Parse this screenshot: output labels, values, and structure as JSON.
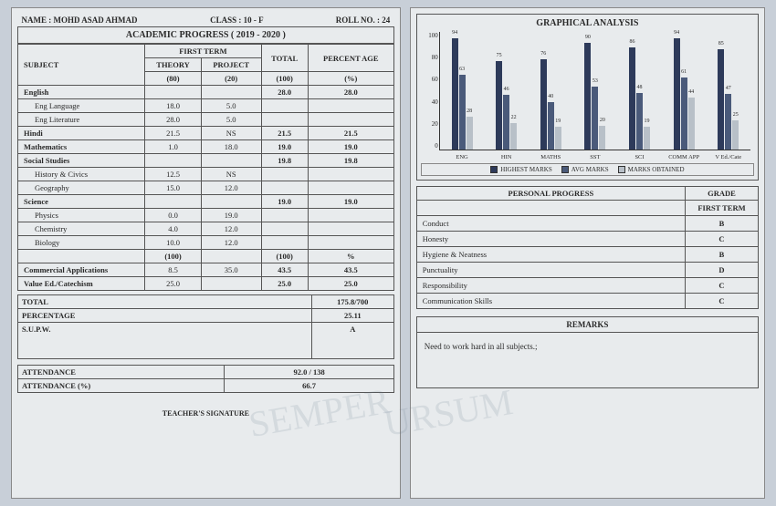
{
  "header": {
    "name_label": "NAME :",
    "name": "MOHD ASAD AHMAD",
    "class_label": "CLASS :",
    "class": "10 - F",
    "roll_label": "ROLL NO. :",
    "roll": "24",
    "progress_title": "ACADEMIC PROGRESS ( 2019 - 2020 )"
  },
  "cols": {
    "subject": "SUBJECT",
    "first_term": "FIRST TERM",
    "total": "TOTAL",
    "percent": "PERCENT\nAGE",
    "theory": "THEORY",
    "project": "PROJECT",
    "theory_max": "(80)",
    "project_max": "(20)",
    "total_max": "(100)",
    "percent_unit": "(%)"
  },
  "subjects": [
    {
      "name": "English",
      "theory": "",
      "project": "",
      "total": "28.0",
      "pct": "28.0",
      "bold": true
    },
    {
      "name": "Eng Language",
      "theory": "18.0",
      "project": "5.0",
      "total": "",
      "pct": "",
      "sub": true
    },
    {
      "name": "Eng Literature",
      "theory": "28.0",
      "project": "5.0",
      "total": "",
      "pct": "",
      "sub": true
    },
    {
      "name": "Hindi",
      "theory": "21.5",
      "project": "NS",
      "total": "21.5",
      "pct": "21.5",
      "bold": true
    },
    {
      "name": "Mathematics",
      "theory": "1.0",
      "project": "18.0",
      "total": "19.0",
      "pct": "19.0",
      "bold": true
    },
    {
      "name": "Social Studies",
      "theory": "",
      "project": "",
      "total": "19.8",
      "pct": "19.8",
      "bold": true
    },
    {
      "name": "History & Civics",
      "theory": "12.5",
      "project": "NS",
      "total": "",
      "pct": "",
      "sub": true
    },
    {
      "name": "Geography",
      "theory": "15.0",
      "project": "12.0",
      "total": "",
      "pct": "",
      "sub": true
    },
    {
      "name": "Science",
      "theory": "",
      "project": "",
      "total": "19.0",
      "pct": "19.0",
      "bold": true
    },
    {
      "name": "Physics",
      "theory": "0.0",
      "project": "19.0",
      "total": "",
      "pct": "",
      "sub": true
    },
    {
      "name": "Chemistry",
      "theory": "4.0",
      "project": "12.0",
      "total": "",
      "pct": "",
      "sub": true
    },
    {
      "name": "Biology",
      "theory": "10.0",
      "project": "12.0",
      "total": "",
      "pct": "",
      "sub": true
    }
  ],
  "midrow": {
    "theory": "(100)",
    "total": "(100)",
    "pct": "%"
  },
  "extra": [
    {
      "name": "Commercial Applications",
      "theory": "8.5",
      "project": "35.0",
      "total": "43.5",
      "pct": "43.5"
    },
    {
      "name": "Value Ed./Catechism",
      "theory": "25.0",
      "project": "",
      "total": "25.0",
      "pct": "25.0"
    }
  ],
  "totals": {
    "total_label": "TOTAL",
    "total_val": "175.8/700",
    "pct_label": "PERCENTAGE",
    "pct_val": "25.11",
    "supw_label": "S.U.P.W.",
    "supw_val": "A",
    "att_label": "ATTENDANCE",
    "att_val": "92.0 / 138",
    "attpct_label": "ATTENDANCE (%)",
    "attpct_val": "66.7",
    "sig_label": "TEACHER'S SIGNATURE"
  },
  "chart": {
    "title": "GRAPHICAL ANALYSIS",
    "ylim": 100,
    "yticks": [
      "100",
      "80",
      "60",
      "40",
      "20",
      "0"
    ],
    "colors": {
      "highest": "#2d3a5a",
      "avg": "#4a5a7a",
      "obtained": "#b8c0c8"
    },
    "legend": {
      "highest": "HIGHEST MARKS",
      "avg": "AVG MARKS",
      "obtained": "MARKS OBTAINED"
    },
    "groups": [
      {
        "label": "ENG",
        "highest": 94,
        "avg": 63,
        "obtained": 28
      },
      {
        "label": "HIN",
        "highest": 75,
        "avg": 46,
        "obtained": 22
      },
      {
        "label": "MATHS",
        "highest": 76,
        "avg": 40,
        "obtained": 19
      },
      {
        "label": "SST",
        "highest": 90,
        "avg": 53,
        "obtained": 20
      },
      {
        "label": "SCI",
        "highest": 86,
        "avg": 48,
        "obtained": 19
      },
      {
        "label": "COMM APP",
        "highest": 94,
        "avg": 61,
        "obtained": 44
      },
      {
        "label": "V Ed./Cate",
        "highest": 85,
        "avg": 47,
        "obtained": 25
      }
    ]
  },
  "personal": {
    "title": "PERSONAL PROGRESS",
    "grade_hdr": "GRADE",
    "term_hdr": "FIRST TERM",
    "rows": [
      {
        "label": "Conduct",
        "grade": "B"
      },
      {
        "label": "Honesty",
        "grade": "C"
      },
      {
        "label": "Hygiene & Neatness",
        "grade": "B"
      },
      {
        "label": "Punctuality",
        "grade": "D"
      },
      {
        "label": "Responsibility",
        "grade": "C"
      },
      {
        "label": "Communication Skills",
        "grade": "C"
      }
    ]
  },
  "remarks": {
    "title": "REMARKS",
    "text": "Need to work hard in all subjects.;"
  }
}
